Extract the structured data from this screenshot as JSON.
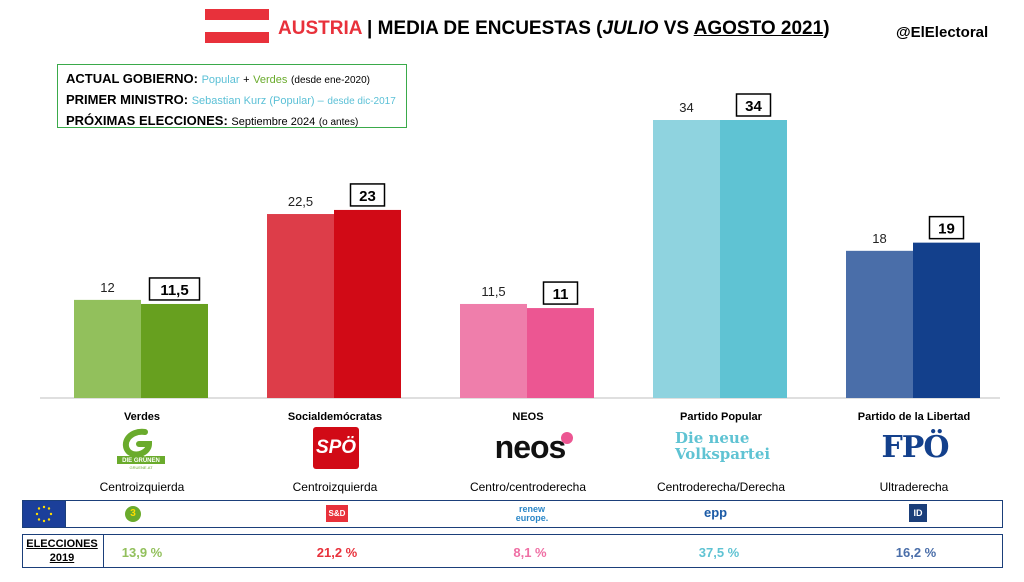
{
  "header": {
    "country": "AUSTRIA",
    "title_pre": "MEDIA DE ENCUESTAS (",
    "title_july": "JULIO",
    "title_vs": " VS ",
    "title_aug": "AGOSTO 2021",
    "title_post": ")",
    "handle": "@ElElectoral"
  },
  "info": {
    "gov_label": "ACTUAL GOBIERNO:",
    "gov_party1": "Popular",
    "gov_plus": "+",
    "gov_party2": "Verdes",
    "gov_since": "(desde ene-2020)",
    "pm_label": "PRIMER MINISTRO:",
    "pm_value": "Sebastian Kurz (Popular) –",
    "pm_since": "desde dic-2017",
    "next_label": "PRÓXIMAS ELECCIONES:",
    "next_value": "Septiembre 2024",
    "next_note": "(o antes)"
  },
  "chart_data": {
    "type": "bar",
    "categories": [
      "Verdes",
      "Socialdemócratas",
      "NEOS",
      "Partido Popular",
      "Partido de la Libertad"
    ],
    "series": [
      {
        "period": "julio",
        "values": [
          12,
          22.5,
          11.5,
          34,
          18
        ],
        "labels": [
          "12",
          "22,5",
          "11,5",
          "34",
          "18"
        ],
        "colors": [
          "#92c05c",
          "#dd3d49",
          "#ef7eab",
          "#8fd3df",
          "#4a6ea9"
        ]
      },
      {
        "period": "agosto",
        "values": [
          11.5,
          23,
          11,
          34,
          19
        ],
        "labels": [
          "11,5",
          "23",
          "11",
          "34",
          "19"
        ],
        "colors": [
          "#67a01f",
          "#d10a16",
          "#ec5692",
          "#5fc3d3",
          "#13408c"
        ]
      }
    ],
    "ylim": [
      0,
      34
    ]
  },
  "parties": [
    {
      "name": "Verdes",
      "ideology": "Centroizquierda",
      "logo": "DIE GRÜNEN",
      "logo_sub": "GRUENE.AT",
      "eu_group": "3",
      "eu_color": "#6aab2c",
      "election_2019": "13,9 %",
      "color": "#92c05c"
    },
    {
      "name": "Socialdemócratas",
      "ideology": "Centroizquierda",
      "logo": "SPÖ",
      "eu_group": "S&D",
      "eu_color": "#e8313b",
      "election_2019": "21,2 %",
      "color": "#e8313b"
    },
    {
      "name": "NEOS",
      "ideology": "Centro/centroderecha",
      "logo": "neos",
      "eu_group": "renew europe.",
      "eu_color": "#2b87c8",
      "election_2019": "8,1 %",
      "color": "#ef6fa4"
    },
    {
      "name": "Partido Popular",
      "ideology": "Centroderecha/Derecha",
      "logo": "Die neue Volkspartei",
      "eu_group": "epp",
      "eu_color": "#1a5aa6",
      "election_2019": "37,5 %",
      "color": "#5fc3d3"
    },
    {
      "name": "Partido de la Libertad",
      "ideology": "Ultraderecha",
      "logo": "FPÖ",
      "eu_group": "ID",
      "eu_color": "#1b3f7a",
      "election_2019": "16,2 %",
      "color": "#4a6ea9"
    }
  ],
  "elections": {
    "label_line1": "ELECCIONES",
    "label_line2": "2019"
  }
}
